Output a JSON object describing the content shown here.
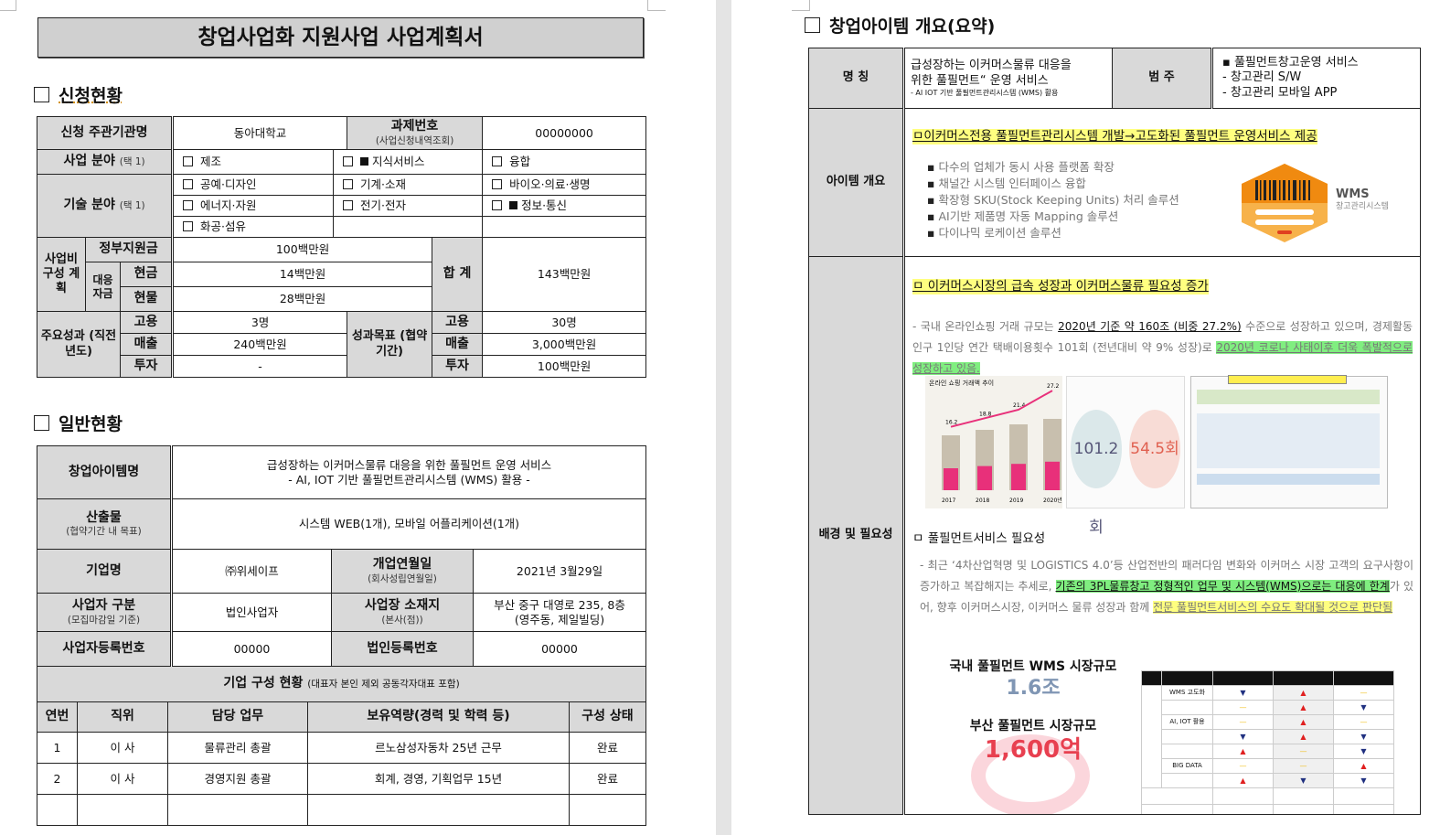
{
  "left_page": {
    "title": "창업사업화 지원사업 사업계획서",
    "section1": "신청현황",
    "application": {
      "org_label": "신청 주관기관명",
      "org_value": "동아대학교",
      "task_label": "과제번호",
      "task_sub": "(사업신청내역조회)",
      "task_value": "00000000",
      "biz_field_label": "사업 분야",
      "biz_field_note": "(택 1)",
      "biz_fields": [
        "제조",
        "지식서비스",
        "융합"
      ],
      "tech_field_label": "기술 분야",
      "tech_field_note": "(택 1)",
      "tech_fields": [
        "공예·디자인",
        "기계·소재",
        "바이오·의료·생명",
        "에너지·자원",
        "전기·전자",
        "정보·통신",
        "화공·섬유"
      ],
      "budget_label": "사업비 구성 계획",
      "gov_label": "정부지원금",
      "gov_value": "100백만원",
      "match_label": "대응 자금",
      "cash_label": "현금",
      "cash_value": "14백만원",
      "kind_label": "현물",
      "kind_value": "28백만원",
      "total_label": "합 계",
      "total_value": "143백만원",
      "perf_label": "주요성과 (직전년도)",
      "target_label": "성과목표 (협약기간)",
      "employ_label": "고용",
      "sales_label": "매출",
      "invest_label": "투자",
      "perf_employ": "3명",
      "perf_sales": "240백만원",
      "perf_invest": "-",
      "target_employ": "30명",
      "target_sales": "3,000백만원",
      "target_invest": "100백만원"
    },
    "section2": "일반현황",
    "general": {
      "item_label": "창업아이템명",
      "item_line1": "급성장하는 이커머스물류 대응을 위한 풀필먼트 운영 서비스",
      "item_line2": "- AI, IOT 기반 풀필먼트관리시스템 (WMS) 활용 -",
      "output_label": "산출물",
      "output_sub": "(협약기간 내 목표)",
      "output_value": "시스템 WEB(1개), 모바일 어플리케이션(1개)",
      "company_label": "기업명",
      "company_value": "㈜위세이프",
      "founded_label": "개업연월일",
      "founded_sub": "(회사성립연월일)",
      "founded_value": "2021년 3월29일",
      "biztype_label": "사업자 구분",
      "biztype_sub": "(모집마감일 기준)",
      "biztype_value": "법인사업자",
      "location_label": "사업장 소재지",
      "location_sub": "(본사(점))",
      "location_line1": "부산 중구 대영로 235, 8층",
      "location_line2": "(영주동, 제일빌딩)",
      "bizno_label": "사업자등록번호",
      "bizno_value": "00000",
      "corpno_label": "법인등록번호",
      "corpno_value": "00000",
      "members_title": "기업 구성 현황",
      "members_note": "(대표자 본인 제외 공동각자대표 포함)",
      "members_headers": [
        "연번",
        "직위",
        "담당 업무",
        "보유역량(경력 및 학력 등)",
        "구성 상태"
      ],
      "members": [
        [
          "1",
          "이 사",
          "물류관리 총괄",
          "르노삼성자동차 25년 근무",
          "완료"
        ],
        [
          "2",
          "이 사",
          "경영지원 총괄",
          "회계, 경영, 기획업무 15년",
          "완료"
        ]
      ]
    }
  },
  "right_page": {
    "section": "창업아이템 개요(요약)",
    "name_label": "명 칭",
    "name_line1": "급성장하는 이커머스물류 대응을",
    "name_line2": "위한 풀필먼트“ 운영 서비스",
    "name_line3": "- AI IOT 기반 풀필먼트관리시스템 (WMS) 활용",
    "category_label": "범 주",
    "category_items": [
      "▪ 풀필먼트창고운영 서비스",
      "- 창고관리 S/W",
      "- 창고관리 모바일 APP"
    ],
    "overview_label": "아이템 개요",
    "overview_heading": "ㅁ이커머스전용 풀필먼트관리시스템 개발→고도화된 풀필먼트 운영서비스 제공",
    "overview_bullets": [
      "다수의 업체가 동시 사용 플랫폼 확장",
      "채널간 시스템 인터페이스 융합",
      "확장형 SKU(Stock Keeping Units) 처리 솔루션",
      "AI기반 제품명 자동 Mapping 솔루션",
      "다이나믹 로케이션 솔루션"
    ],
    "logo_title": "WMS",
    "logo_sub": "창고관리시스템",
    "background_label": "배경 및 필요성",
    "bg_heading1": "ㅁ 이커머스시장의 급속 성장과 이커머스물류 필요성 증가",
    "bg_para1_a": "- 국내 온라인쇼핑 거래 규모는 ",
    "bg_para1_b": "2020년 기준 약 160조 (비중 27.2%)",
    "bg_para1_c": " 수준으로 성장하고 있으며, 경제활동인구 1인당 연간 택배이용횟수 101회 (전년대비 약 9% 성장)로 ",
    "bg_para1_d": "2020년 코로나 사태이후 더욱 폭발적으로 성장하고 있음.",
    "img1_title": "온라인 쇼핑 거래액 추이",
    "img1_years": [
      "2017",
      "2018",
      "2019",
      "2020년"
    ],
    "img1_ratio": [
      16.2,
      18.8,
      21.4,
      27.2
    ],
    "img2_a": "101.2회",
    "img2_b": "54.5회",
    "bg_heading2": "ㅁ 풀필먼트서비스 필요성",
    "bg_para2_a": "- 최근 ‘4차산업혁명 및 LOGISTICS 4.0’등 산업전반의 패러다임 변화와 이커머스 시장 고객의 요구사항이 증가하고 복잡해지는 추세로, ",
    "bg_para2_b": "기존의 3PL물류창고 정형적인 업무 및 시스템(WMS)으로는 대응에 한계",
    "bg_para2_c": "가 있어, 향후 이커머스시장, 이커머스 물류 성장과 함께 ",
    "bg_para2_d": "전문 풀필먼트서비스의 수요도 확대될 것으로 판단됨",
    "domestic_label": "국내 풀필먼트 WMS 시장규모",
    "domestic_value": "1.6조",
    "busan_label": "부산 풀필먼트 시장규모",
    "busan_value": "1,600억",
    "compare_rows": [
      [
        "WMS 고도화",
        "▼",
        "▲",
        "—"
      ],
      [
        "",
        "—",
        "▲",
        "▼"
      ],
      [
        "AI, IOT 활용",
        "—",
        "▲",
        "—"
      ],
      [
        "",
        "▼",
        "▲",
        "▼"
      ],
      [
        "",
        "▲",
        "—",
        "▼"
      ],
      [
        "BIG DATA",
        "—",
        "—",
        "▲"
      ],
      [
        "",
        "▲",
        "▼",
        "▼"
      ]
    ],
    "colors": {
      "highlight_yellow": "#ffff80",
      "highlight_green": "#80ee80",
      "logo_orange": "#f39a1e",
      "up": "#e02020",
      "down": "#203080"
    }
  }
}
